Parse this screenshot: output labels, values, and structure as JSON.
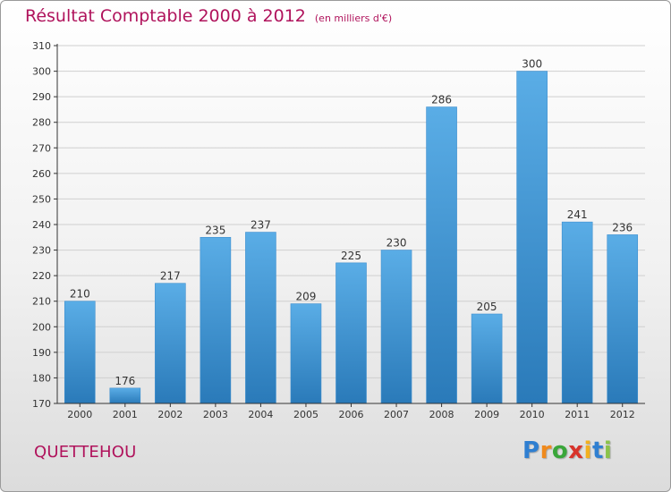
{
  "chart_data": {
    "type": "bar",
    "title": "Résultat Comptable 2000 à 2012",
    "subtitle": "(en milliers d'€)",
    "categories": [
      "2000",
      "2001",
      "2002",
      "2003",
      "2004",
      "2005",
      "2006",
      "2007",
      "2008",
      "2009",
      "2010",
      "2011",
      "2012"
    ],
    "values": [
      210,
      176,
      217,
      235,
      237,
      209,
      225,
      230,
      286,
      205,
      300,
      241,
      236
    ],
    "ylim": [
      170,
      310
    ],
    "yticks": [
      170,
      180,
      190,
      200,
      210,
      220,
      230,
      240,
      250,
      260,
      270,
      280,
      290,
      300,
      310
    ],
    "xlabel": "",
    "ylabel": "",
    "grid": true,
    "colors": {
      "bar_top": "#5aade6",
      "bar_bottom": "#2a7ab9",
      "grid": "#cfcfcf",
      "axis": "#333333",
      "title": "#b0135c"
    }
  },
  "location": "QUETTEHOU",
  "logo": {
    "letters": [
      "P",
      "r",
      "o",
      "x",
      "i",
      "t",
      "i"
    ],
    "colors": [
      "#2f7fd1",
      "#f08a1d",
      "#3aa63a",
      "#d8332b",
      "#f2b01e",
      "#2f7fd1",
      "#8bc34a"
    ]
  }
}
